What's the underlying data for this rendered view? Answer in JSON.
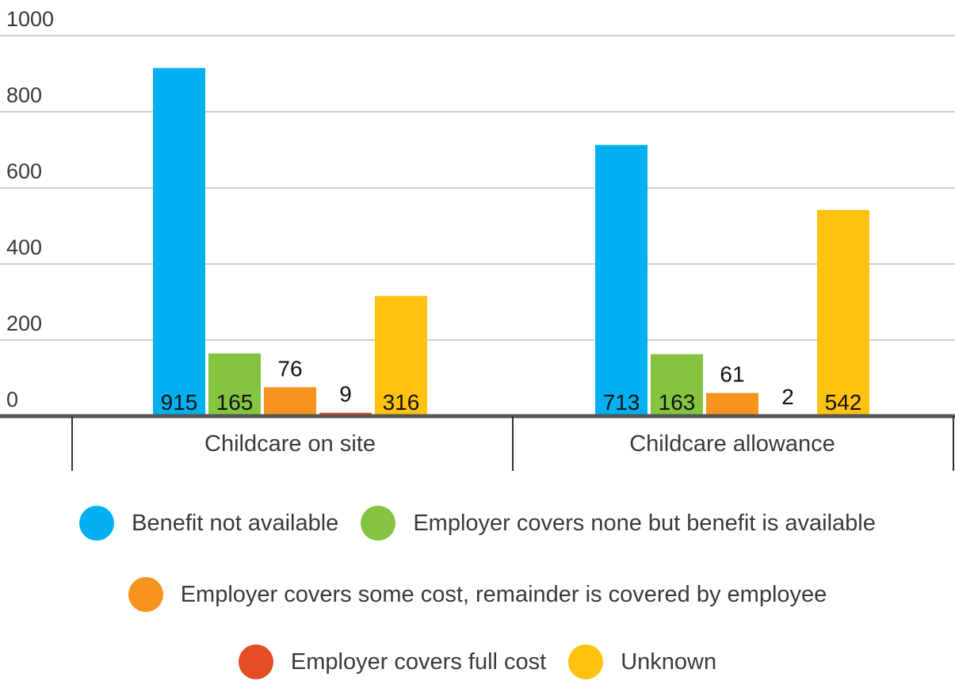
{
  "chart_data": {
    "type": "bar",
    "categories": [
      "Childcare on site",
      "Childcare allowance"
    ],
    "series": [
      {
        "name": "Benefit not available",
        "color": "#00b0f0",
        "values": [
          915,
          713
        ]
      },
      {
        "name": "Employer covers none but benefit is available",
        "color": "#84c441",
        "values": [
          165,
          163
        ]
      },
      {
        "name": "Employer covers some cost, remainder is covered by employee",
        "color": "#f7941d",
        "values": [
          76,
          61
        ]
      },
      {
        "name": "Employer covers full cost",
        "color": "#e44d26",
        "values": [
          9,
          2
        ]
      },
      {
        "name": "Unknown",
        "color": "#ffc20e",
        "values": [
          316,
          542
        ]
      }
    ],
    "y_ticks": [
      "0",
      "200",
      "400",
      "600",
      "800",
      "1000"
    ],
    "ylim": [
      0,
      1000
    ],
    "grid": true,
    "legend_position": "bottom"
  }
}
